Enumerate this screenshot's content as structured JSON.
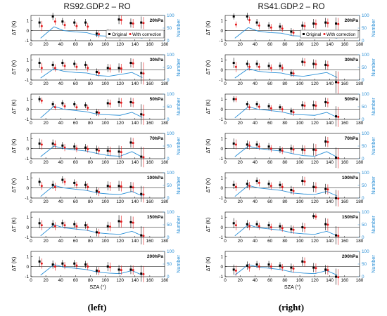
{
  "figure": {
    "left_title": "RS92.GDP.2 – RO",
    "right_title": "RS41.GDP.2 – RO",
    "left_caption": "(left)",
    "right_caption": "(right)",
    "xlabel": "SZA (°)",
    "ylabel_left": "ΔT (K)",
    "ylabel_right": "Number",
    "legend": {
      "original": "Original",
      "corrected": "With correction"
    },
    "colors": {
      "original": "#000000",
      "corrected": "#e41a1c",
      "count": "#2a8fd6"
    }
  },
  "chart_data": [
    {
      "type": "scatter",
      "title": "RS92.GDP.2 – RO",
      "xlabel": "SZA (°)",
      "ylabel": "ΔT (K)",
      "y2label": "Number",
      "xlim": [
        0,
        180
      ],
      "ylim": [
        -1,
        1.5
      ],
      "y2lim": [
        0,
        100
      ],
      "xticks": [
        0,
        20,
        40,
        60,
        80,
        100,
        120,
        140,
        160,
        180
      ],
      "panels": [
        {
          "level": "20hPa",
          "sza": [
            13,
            31,
            44,
            60,
            75,
            90,
            105,
            120,
            136,
            150
          ],
          "original": [
            0.8,
            1.4,
            0.9,
            0.8,
            0.8,
            -0.3,
            -0.25,
            1.1,
            0.75,
            0.8
          ],
          "original_err": [
            0.5,
            0.35,
            0.35,
            0.35,
            0.35,
            0.35,
            0.4,
            0.45,
            0.45,
            0.6
          ],
          "corrected": [
            0.45,
            0.9,
            0.55,
            0.45,
            0.4,
            -0.35,
            -0.3,
            1.05,
            0.7,
            0.75
          ],
          "corrected_err": [
            0.5,
            0.35,
            0.35,
            0.35,
            0.35,
            0.35,
            0.4,
            0.45,
            0.45,
            0.6
          ],
          "count": [
            10,
            55,
            40,
            35,
            32,
            20,
            18,
            25,
            22,
            10
          ]
        },
        {
          "level": "30hPa",
          "sza": [
            13,
            31,
            44,
            60,
            75,
            90,
            105,
            120,
            136,
            150
          ],
          "original": [
            0.7,
            0.5,
            0.7,
            0.6,
            0.5,
            -0.2,
            0.2,
            0.2,
            0.7,
            -0.3
          ],
          "original_err": [
            0.5,
            0.35,
            0.35,
            0.35,
            0.35,
            0.35,
            0.4,
            0.45,
            0.45,
            1.1
          ],
          "corrected": [
            0.2,
            0.2,
            0.4,
            0.3,
            0.2,
            -0.3,
            0.15,
            0.15,
            0.65,
            -0.35
          ],
          "corrected_err": [
            0.5,
            0.35,
            0.35,
            0.35,
            0.35,
            0.35,
            0.4,
            0.45,
            0.45,
            1.1
          ],
          "count": [
            8,
            45,
            35,
            30,
            28,
            18,
            15,
            22,
            30,
            10
          ]
        },
        {
          "level": "50hPa",
          "sza": [
            13,
            31,
            44,
            60,
            75,
            90,
            105,
            120,
            136,
            150
          ],
          "original": [
            1.0,
            0.5,
            0.6,
            0.5,
            0.4,
            -0.3,
            0.6,
            0.7,
            0.7,
            -0.5
          ],
          "original_err": [
            0.3,
            0.3,
            0.3,
            0.3,
            0.3,
            0.35,
            0.4,
            0.45,
            0.45,
            1.0
          ],
          "corrected": [
            0.85,
            0.2,
            0.3,
            0.2,
            0.15,
            -0.35,
            0.55,
            0.65,
            0.65,
            -0.55
          ],
          "corrected_err": [
            0.3,
            0.3,
            0.3,
            0.3,
            0.3,
            0.35,
            0.4,
            0.45,
            0.45,
            1.0
          ],
          "count": [
            6,
            52,
            40,
            35,
            30,
            20,
            18,
            16,
            28,
            8
          ]
        },
        {
          "level": "70hPa",
          "sza": [
            13,
            31,
            44,
            60,
            75,
            90,
            105,
            120,
            136,
            150
          ],
          "original": [
            0.5,
            0.5,
            0.3,
            0.2,
            0.1,
            -0.1,
            -0.2,
            -0.3,
            0.6,
            -0.8
          ],
          "original_err": [
            0.5,
            0.4,
            0.35,
            0.35,
            0.35,
            0.4,
            0.45,
            0.6,
            0.5,
            1.0
          ],
          "corrected": [
            0.4,
            0.4,
            0.1,
            0.0,
            -0.05,
            -0.2,
            -0.25,
            -0.35,
            0.55,
            -0.85
          ],
          "corrected_err": [
            0.5,
            0.4,
            0.35,
            0.35,
            0.35,
            0.4,
            0.45,
            0.6,
            0.5,
            1.0
          ],
          "count": [
            8,
            50,
            40,
            35,
            30,
            20,
            12,
            10,
            28,
            6
          ]
        },
        {
          "level": "100hPa",
          "sza": [
            13,
            31,
            44,
            60,
            75,
            90,
            105,
            120,
            136,
            150
          ],
          "original": [
            0.6,
            0.3,
            0.8,
            0.5,
            0.3,
            -0.3,
            0.2,
            0.2,
            0.1,
            -0.6
          ],
          "original_err": [
            0.4,
            0.4,
            0.35,
            0.35,
            0.35,
            0.4,
            0.45,
            0.5,
            0.5,
            0.8
          ],
          "corrected": [
            0.2,
            0.1,
            0.6,
            0.3,
            0.1,
            -0.4,
            0.15,
            0.15,
            0.05,
            -0.65
          ],
          "corrected_err": [
            0.4,
            0.4,
            0.35,
            0.35,
            0.35,
            0.4,
            0.45,
            0.5,
            0.5,
            0.8
          ],
          "count": [
            6,
            50,
            40,
            35,
            30,
            20,
            16,
            14,
            26,
            8
          ]
        },
        {
          "level": "150hPa",
          "sza": [
            13,
            31,
            44,
            60,
            75,
            90,
            105,
            120,
            136,
            150
          ],
          "original": [
            0.4,
            0.3,
            0.4,
            0.3,
            0.2,
            -0.5,
            0.1,
            0.6,
            0.5,
            -0.8
          ],
          "original_err": [
            0.5,
            0.4,
            0.35,
            0.35,
            0.35,
            0.4,
            0.45,
            0.6,
            0.6,
            0.9
          ],
          "corrected": [
            0.2,
            0.1,
            0.2,
            0.1,
            0.0,
            -0.55,
            0.05,
            0.55,
            0.45,
            -0.85
          ],
          "corrected_err": [
            0.5,
            0.4,
            0.35,
            0.35,
            0.35,
            0.4,
            0.45,
            0.6,
            0.6,
            0.9
          ],
          "count": [
            6,
            50,
            38,
            33,
            28,
            18,
            14,
            12,
            24,
            6
          ]
        },
        {
          "level": "200hPa",
          "sza": [
            13,
            31,
            44,
            60,
            75,
            90,
            105,
            120,
            136,
            150
          ],
          "original": [
            0.5,
            0.2,
            0.3,
            0.3,
            0.2,
            -0.4,
            0.0,
            -0.3,
            -0.3,
            -0.7
          ],
          "original_err": [
            0.5,
            0.4,
            0.35,
            0.35,
            0.35,
            0.4,
            0.45,
            0.45,
            0.45,
            0.8
          ],
          "corrected": [
            0.3,
            0.0,
            0.1,
            0.1,
            0.0,
            -0.45,
            -0.05,
            -0.35,
            -0.35,
            -0.75
          ],
          "corrected_err": [
            0.5,
            0.4,
            0.35,
            0.35,
            0.35,
            0.4,
            0.45,
            0.45,
            0.45,
            0.8
          ],
          "count": [
            6,
            48,
            38,
            33,
            28,
            18,
            14,
            12,
            24,
            6
          ]
        }
      ]
    },
    {
      "type": "scatter",
      "title": "RS41.GDP.2 – RO",
      "xlabel": "SZA (°)",
      "ylabel": "ΔT (K)",
      "y2label": "Number",
      "xlim": [
        0,
        180
      ],
      "ylim": [
        -1,
        1.5
      ],
      "y2lim": [
        0,
        100
      ],
      "xticks": [
        0,
        20,
        40,
        60,
        80,
        100,
        120,
        140,
        160,
        180
      ],
      "panels": [
        {
          "level": "20hPa",
          "sza": [
            13,
            31,
            44,
            60,
            75,
            90,
            105,
            120,
            136,
            150
          ],
          "original": [
            1.4,
            1.4,
            0.8,
            0.5,
            0.4,
            -0.1,
            0.5,
            0.7,
            0.8,
            0.7
          ],
          "original_err": [
            0.3,
            0.35,
            0.35,
            0.35,
            0.35,
            0.35,
            0.4,
            0.45,
            0.45,
            0.6
          ],
          "corrected": [
            0.6,
            1.05,
            0.5,
            0.3,
            0.2,
            -0.2,
            0.45,
            0.65,
            0.75,
            0.65
          ],
          "corrected_err": [
            0.3,
            0.35,
            0.35,
            0.35,
            0.35,
            0.35,
            0.4,
            0.45,
            0.45,
            0.6
          ],
          "count": [
            10,
            52,
            38,
            32,
            30,
            20,
            18,
            25,
            20,
            10
          ]
        },
        {
          "level": "30hPa",
          "sza": [
            13,
            31,
            44,
            60,
            75,
            90,
            105,
            120,
            136,
            150
          ],
          "original": [
            0.7,
            0.6,
            0.6,
            0.4,
            0.4,
            -0.3,
            0.8,
            0.6,
            0.5,
            -1.2
          ],
          "original_err": [
            0.5,
            0.35,
            0.35,
            0.35,
            0.35,
            0.35,
            0.4,
            0.45,
            0.45,
            1.1
          ],
          "corrected": [
            0.3,
            0.3,
            0.3,
            0.2,
            0.2,
            -0.35,
            0.75,
            0.55,
            0.45,
            -1.25
          ],
          "corrected_err": [
            0.5,
            0.35,
            0.35,
            0.35,
            0.35,
            0.35,
            0.4,
            0.45,
            0.45,
            1.1
          ],
          "count": [
            8,
            45,
            35,
            30,
            28,
            18,
            15,
            22,
            30,
            10
          ]
        },
        {
          "level": "50hPa",
          "sza": [
            13,
            31,
            44,
            60,
            75,
            90,
            105,
            120,
            136,
            150
          ],
          "original": [
            1.0,
            0.5,
            0.5,
            0.3,
            0.2,
            -0.2,
            0.4,
            0.4,
            0.7,
            -0.7
          ],
          "original_err": [
            0.3,
            0.3,
            0.3,
            0.3,
            0.3,
            0.35,
            0.4,
            0.45,
            0.45,
            1.0
          ],
          "corrected": [
            1.0,
            0.2,
            0.25,
            0.1,
            0.0,
            -0.3,
            0.35,
            0.35,
            0.65,
            -0.75
          ],
          "corrected_err": [
            0.3,
            0.3,
            0.3,
            0.3,
            0.3,
            0.35,
            0.4,
            0.45,
            0.45,
            1.0
          ],
          "count": [
            6,
            50,
            40,
            35,
            30,
            20,
            18,
            16,
            28,
            8
          ]
        },
        {
          "level": "70hPa",
          "sza": [
            13,
            31,
            44,
            60,
            75,
            90,
            105,
            120,
            136,
            150
          ],
          "original": [
            0.5,
            0.4,
            0.4,
            0.2,
            -0.1,
            0.0,
            -0.1,
            -0.1,
            0.7,
            -0.9
          ],
          "original_err": [
            0.5,
            0.4,
            0.35,
            0.35,
            0.35,
            0.4,
            0.45,
            0.6,
            0.5,
            1.0
          ],
          "corrected": [
            0.4,
            0.3,
            0.2,
            0.0,
            -0.2,
            -0.1,
            -0.15,
            -0.15,
            0.65,
            -0.95
          ],
          "corrected_err": [
            0.5,
            0.4,
            0.35,
            0.35,
            0.35,
            0.4,
            0.45,
            0.6,
            0.5,
            1.0
          ],
          "count": [
            8,
            50,
            40,
            35,
            30,
            20,
            12,
            10,
            28,
            6
          ]
        },
        {
          "level": "100hPa",
          "sza": [
            13,
            31,
            44,
            60,
            75,
            90,
            105,
            120,
            136,
            150
          ],
          "original": [
            0.3,
            0.4,
            0.7,
            0.4,
            0.3,
            -0.2,
            0.7,
            0.1,
            -0.1,
            -1.0
          ],
          "original_err": [
            0.4,
            0.4,
            0.35,
            0.35,
            0.35,
            0.4,
            0.45,
            0.5,
            0.5,
            0.8
          ],
          "corrected": [
            0.1,
            0.2,
            0.5,
            0.2,
            0.1,
            -0.3,
            0.65,
            0.05,
            -0.15,
            -1.05
          ],
          "corrected_err": [
            0.4,
            0.4,
            0.35,
            0.35,
            0.35,
            0.4,
            0.45,
            0.5,
            0.5,
            0.8
          ],
          "count": [
            6,
            50,
            40,
            35,
            30,
            20,
            16,
            14,
            26,
            8
          ]
        },
        {
          "level": "150hPa",
          "sza": [
            13,
            31,
            44,
            60,
            75,
            90,
            105,
            120,
            136,
            150
          ],
          "original": [
            0.4,
            0.3,
            0.3,
            0.2,
            0.1,
            -0.2,
            0.0,
            1.1,
            0.3,
            -0.8
          ],
          "original_err": [
            0.5,
            0.4,
            0.35,
            0.35,
            0.35,
            0.4,
            0.45,
            0.3,
            0.6,
            0.9
          ],
          "corrected": [
            0.2,
            0.1,
            0.1,
            0.0,
            -0.1,
            -0.25,
            -0.05,
            1.05,
            0.25,
            -0.85
          ],
          "corrected_err": [
            0.5,
            0.4,
            0.35,
            0.35,
            0.35,
            0.4,
            0.45,
            0.3,
            0.6,
            0.9
          ],
          "count": [
            6,
            50,
            38,
            33,
            28,
            18,
            14,
            12,
            24,
            6
          ]
        },
        {
          "level": "200hPa",
          "sza": [
            13,
            31,
            44,
            60,
            75,
            90,
            105,
            120,
            136,
            150
          ],
          "original": [
            -0.3,
            0.1,
            0.2,
            0.2,
            0.1,
            -0.1,
            0.5,
            -0.1,
            -0.3,
            -1.0
          ],
          "original_err": [
            0.5,
            0.4,
            0.35,
            0.35,
            0.35,
            0.4,
            0.45,
            0.45,
            0.45,
            0.8
          ],
          "corrected": [
            -0.4,
            -0.1,
            0.0,
            0.0,
            -0.1,
            -0.2,
            0.45,
            -0.15,
            -0.35,
            -1.05
          ],
          "corrected_err": [
            0.5,
            0.4,
            0.35,
            0.35,
            0.35,
            0.4,
            0.45,
            0.45,
            0.45,
            0.8
          ],
          "count": [
            6,
            48,
            38,
            33,
            28,
            18,
            14,
            12,
            24,
            6
          ]
        }
      ]
    }
  ]
}
